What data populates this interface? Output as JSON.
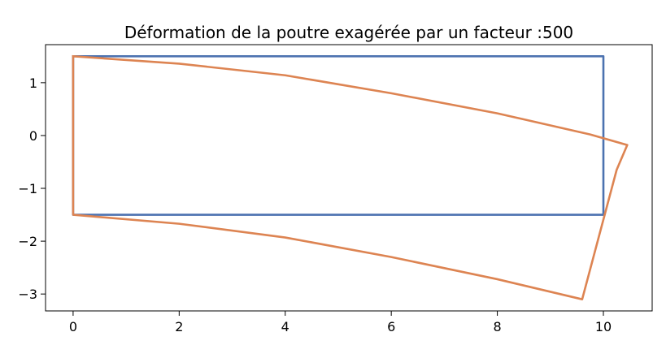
{
  "chart_data": {
    "type": "line",
    "title": "Déformation de la poutre exagérée par un facteur :500",
    "xlabel": "",
    "ylabel": "",
    "xlim": [
      -0.52,
      10.92
    ],
    "ylim": [
      -3.32,
      1.72
    ],
    "xticks": [
      0,
      2,
      4,
      6,
      8,
      10
    ],
    "yticks": [
      1,
      0,
      -1,
      -2,
      -3
    ],
    "xtick_labels": [
      "0",
      "2",
      "4",
      "6",
      "8",
      "10"
    ],
    "ytick_labels": [
      "1",
      "0",
      "−1",
      "−2",
      "−3"
    ],
    "grid": false,
    "legend": "none",
    "series": [
      {
        "color": "#4c72b0",
        "x": [
          0,
          10,
          10,
          0,
          0
        ],
        "y": [
          1.5,
          1.5,
          -1.5,
          -1.5,
          1.5
        ]
      },
      {
        "color": "#dd8452",
        "x": [
          0,
          2,
          4,
          6,
          8,
          9.75,
          10.45,
          10.25,
          9.6,
          8,
          6,
          4,
          2,
          0,
          0
        ],
        "y": [
          1.5,
          1.36,
          1.14,
          0.8,
          0.42,
          0.02,
          -0.18,
          -0.65,
          -3.1,
          -2.72,
          -2.3,
          -1.93,
          -1.67,
          -1.5,
          1.5
        ]
      }
    ]
  }
}
